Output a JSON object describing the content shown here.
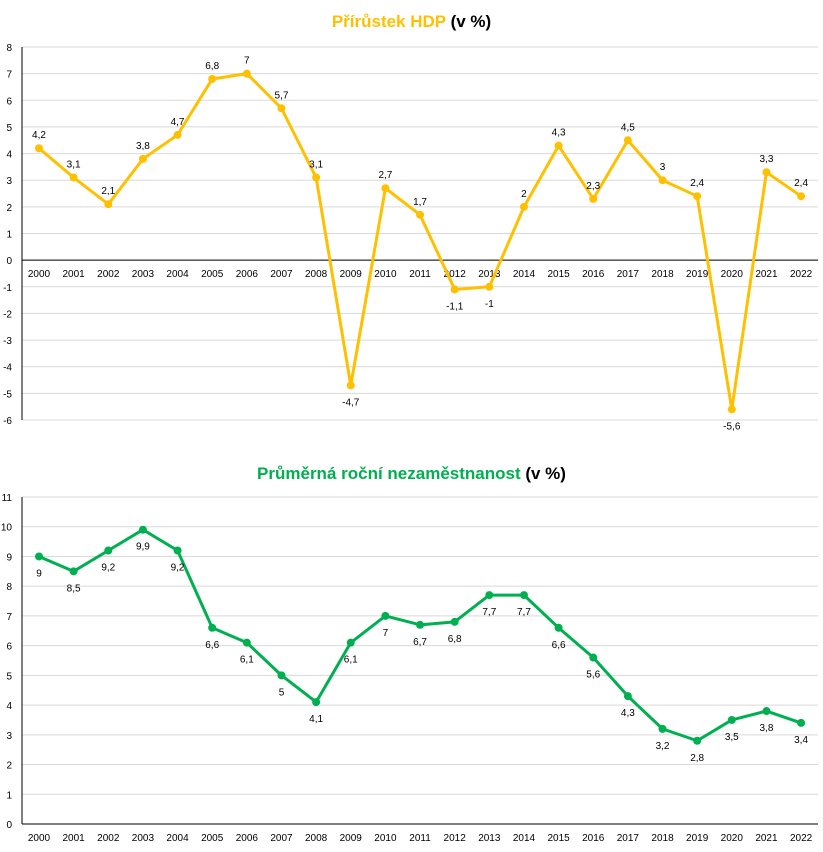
{
  "chart_data": [
    {
      "type": "line",
      "title": "Přírůstek HDP",
      "title_suffix": "(v %)",
      "color": "#FFC000",
      "categories": [
        "2000",
        "2001",
        "2002",
        "2003",
        "2004",
        "2005",
        "2006",
        "2007",
        "2008",
        "2009",
        "2010",
        "2011",
        "2012",
        "2013",
        "2014",
        "2015",
        "2016",
        "2017",
        "2018",
        "2019",
        "2020",
        "2021",
        "2022"
      ],
      "values": [
        4.2,
        3.1,
        2.1,
        3.8,
        4.7,
        6.8,
        7,
        5.7,
        3.1,
        -4.7,
        2.7,
        1.7,
        -1.1,
        -1,
        2,
        4.3,
        2.3,
        4.5,
        3,
        2.4,
        -5.6,
        3.3,
        2.4
      ],
      "labels": [
        "4,2",
        "3,1",
        "2,1",
        "3,8",
        "4,7",
        "6,8",
        "7",
        "5,7",
        "3,1",
        "-4,7",
        "2,7",
        "1,7",
        "-1,1",
        "-1",
        "2",
        "4,3",
        "2,3",
        "4,5",
        "3",
        "2,4",
        "-5,6",
        "3,3",
        "2,4"
      ],
      "yticks": [
        "8",
        "7",
        "6",
        "5",
        "4",
        "3",
        "2",
        "1",
        "0",
        "-1",
        "-2",
        "-3",
        "-4",
        "-5",
        "-6"
      ],
      "ylim": [
        -6,
        8
      ],
      "grid": true
    },
    {
      "type": "line",
      "title": "Průměrná roční nezaměstnanost",
      "title_suffix": "(v %)",
      "color": "#00B050",
      "categories": [
        "2000",
        "2001",
        "2002",
        "2003",
        "2004",
        "2005",
        "2006",
        "2007",
        "2008",
        "2009",
        "2010",
        "2011",
        "2012",
        "2013",
        "2014",
        "2015",
        "2016",
        "2017",
        "2018",
        "2019",
        "2020",
        "2021",
        "2022"
      ],
      "values": [
        9,
        8.5,
        9.2,
        9.9,
        9.2,
        6.6,
        6.1,
        5,
        4.1,
        6.1,
        7,
        6.7,
        6.8,
        7.7,
        7.7,
        6.6,
        5.6,
        4.3,
        3.2,
        2.8,
        3.5,
        3.8,
        3.4
      ],
      "labels": [
        "9",
        "8,5",
        "9,2",
        "9,9",
        "9,2",
        "6,6",
        "6,1",
        "5",
        "4,1",
        "6,1",
        "7",
        "6,7",
        "6,8",
        "7,7",
        "7,7",
        "6,6",
        "5,6",
        "4,3",
        "3,2",
        "2,8",
        "3,5",
        "3,8",
        "3,4"
      ],
      "yticks": [
        "11",
        "10",
        "9",
        "8",
        "7",
        "6",
        "5",
        "4",
        "3",
        "2",
        "1",
        "0"
      ],
      "ylim": [
        0,
        11
      ],
      "grid": true
    }
  ]
}
